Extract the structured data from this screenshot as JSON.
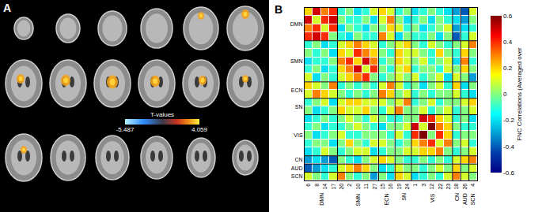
{
  "panel_a": {
    "label": "A",
    "colorbar": {
      "title": "T-values",
      "range": [
        -5.487,
        4.059
      ],
      "ticks": [
        -5.487,
        4.059
      ]
    }
  },
  "chart_data": {
    "type": "heatmap",
    "label": "B",
    "color": "Jet",
    "categories": [
      "6",
      "8",
      "14",
      "17",
      "20",
      "2",
      "10",
      "11",
      "27",
      "15",
      "16",
      "19",
      "24",
      "1",
      "3",
      "12",
      "22",
      "23",
      "18",
      "26",
      "4"
    ],
    "groups": [
      {
        "name": "DMN",
        "size": 4
      },
      {
        "name": "SMN",
        "size": 5
      },
      {
        "name": "ECN",
        "size": 2
      },
      {
        "name": "SN",
        "size": 2
      },
      {
        "name": "VIS",
        "size": 5
      },
      {
        "name": "CN",
        "size": 1
      },
      {
        "name": "AUD",
        "size": 1
      },
      {
        "name": "SCN",
        "size": 1
      }
    ],
    "values": [
      [
        0.2,
        0.5,
        0.3,
        0.4,
        -0.1,
        0.0,
        -0.2,
        -0.1,
        0.1,
        0.2,
        0.1,
        -0.1,
        0.0,
        -0.2,
        -0.1,
        0.0,
        -0.1,
        -0.2,
        -0.3,
        -0.4,
        0.1
      ],
      [
        0.5,
        0.1,
        0.4,
        0.5,
        0.0,
        -0.1,
        -0.1,
        0.0,
        -0.2,
        0.1,
        0.3,
        0.0,
        -0.2,
        -0.1,
        0.0,
        -0.2,
        0.0,
        -0.1,
        -0.2,
        -0.3,
        0.0
      ],
      [
        0.3,
        0.4,
        0.1,
        0.4,
        -0.2,
        0.0,
        -0.1,
        -0.2,
        0.0,
        0.0,
        0.2,
        0.1,
        -0.1,
        0.0,
        -0.2,
        -0.1,
        0.0,
        0.1,
        -0.3,
        -0.2,
        -0.1
      ],
      [
        0.4,
        0.5,
        0.4,
        0.0,
        -0.1,
        -0.2,
        0.0,
        -0.1,
        -0.1,
        0.3,
        0.1,
        -0.2,
        0.0,
        -0.1,
        -0.1,
        0.0,
        -0.2,
        0.0,
        -0.4,
        -0.1,
        0.1
      ],
      [
        -0.1,
        0.0,
        -0.2,
        -0.1,
        0.1,
        0.2,
        0.3,
        0.2,
        0.1,
        -0.1,
        0.0,
        0.1,
        0.2,
        0.0,
        -0.1,
        0.1,
        0.0,
        -0.1,
        0.0,
        0.1,
        0.3
      ],
      [
        0.0,
        -0.1,
        0.0,
        -0.2,
        0.2,
        0.1,
        0.4,
        0.3,
        0.2,
        0.0,
        -0.1,
        0.2,
        0.1,
        0.1,
        0.0,
        -0.1,
        0.2,
        0.0,
        -0.1,
        0.2,
        0.0
      ],
      [
        -0.2,
        -0.1,
        -0.1,
        0.0,
        0.3,
        0.4,
        0.2,
        0.5,
        0.3,
        -0.1,
        0.0,
        0.2,
        0.1,
        0.0,
        0.1,
        -0.1,
        0.0,
        0.1,
        -0.2,
        0.3,
        -0.1
      ],
      [
        -0.1,
        0.0,
        -0.2,
        -0.1,
        0.2,
        0.3,
        0.5,
        0.1,
        0.4,
        0.0,
        -0.1,
        0.1,
        0.2,
        -0.1,
        0.0,
        0.0,
        -0.1,
        0.1,
        0.0,
        0.2,
        0.0
      ],
      [
        0.1,
        -0.2,
        0.0,
        -0.1,
        0.1,
        0.2,
        0.3,
        0.4,
        0.0,
        -0.1,
        0.0,
        0.1,
        0.0,
        0.1,
        -0.1,
        0.0,
        0.1,
        -0.2,
        0.1,
        0.0,
        -0.3
      ],
      [
        0.2,
        0.1,
        0.0,
        0.3,
        -0.1,
        0.0,
        -0.1,
        0.0,
        -0.1,
        0.1,
        0.3,
        0.1,
        -0.1,
        0.0,
        -0.2,
        0.0,
        0.1,
        -0.1,
        0.2,
        -0.2,
        0.0
      ],
      [
        0.1,
        0.3,
        0.2,
        0.1,
        0.0,
        -0.1,
        0.0,
        -0.1,
        0.0,
        0.3,
        0.2,
        0.0,
        0.1,
        -0.1,
        0.0,
        -0.1,
        0.0,
        0.0,
        0.1,
        -0.1,
        -0.2
      ],
      [
        -0.1,
        0.0,
        0.1,
        -0.2,
        0.1,
        0.2,
        0.2,
        0.1,
        0.1,
        0.1,
        0.0,
        0.1,
        0.3,
        -0.1,
        0.0,
        0.1,
        -0.1,
        0.0,
        0.0,
        0.1,
        0.2
      ],
      [
        0.0,
        -0.2,
        -0.1,
        0.0,
        0.2,
        0.1,
        0.1,
        0.2,
        0.0,
        -0.1,
        0.1,
        0.3,
        0.0,
        0.0,
        0.1,
        -0.1,
        0.0,
        0.1,
        -0.1,
        0.0,
        0.1
      ],
      [
        -0.2,
        -0.1,
        0.0,
        -0.1,
        0.0,
        0.1,
        0.0,
        -0.1,
        0.1,
        0.0,
        -0.1,
        -0.1,
        0.0,
        0.0,
        0.5,
        0.4,
        0.2,
        0.1,
        -0.1,
        0.0,
        -0.2
      ],
      [
        -0.1,
        0.0,
        -0.2,
        -0.1,
        -0.1,
        0.0,
        0.1,
        0.0,
        -0.1,
        -0.2,
        0.0,
        0.0,
        0.1,
        0.5,
        0.1,
        0.6,
        0.3,
        0.2,
        0.0,
        -0.1,
        -0.1
      ],
      [
        0.0,
        -0.2,
        -0.1,
        0.0,
        0.1,
        -0.1,
        -0.1,
        0.0,
        0.0,
        0.0,
        -0.1,
        0.1,
        -0.1,
        0.4,
        0.6,
        0.0,
        0.4,
        0.2,
        -0.1,
        0.0,
        0.0
      ],
      [
        -0.1,
        0.0,
        0.0,
        -0.2,
        0.0,
        0.2,
        0.0,
        -0.1,
        0.1,
        0.1,
        0.0,
        -0.1,
        0.0,
        0.2,
        0.3,
        0.4,
        0.1,
        0.3,
        0.0,
        0.1,
        -0.1
      ],
      [
        -0.2,
        -0.1,
        0.1,
        0.0,
        -0.1,
        0.0,
        0.1,
        0.1,
        -0.2,
        -0.1,
        0.0,
        0.0,
        0.1,
        0.1,
        0.2,
        0.2,
        0.3,
        0.0,
        -0.1,
        0.0,
        0.1
      ],
      [
        -0.3,
        -0.2,
        -0.3,
        -0.4,
        0.0,
        -0.1,
        -0.2,
        0.0,
        0.1,
        0.2,
        0.1,
        0.0,
        -0.1,
        -0.1,
        0.0,
        -0.1,
        0.0,
        -0.1,
        0.1,
        0.2,
        0.3
      ],
      [
        -0.4,
        -0.3,
        -0.2,
        -0.1,
        0.1,
        0.2,
        0.3,
        0.2,
        0.0,
        -0.2,
        -0.1,
        0.1,
        0.0,
        0.0,
        -0.1,
        0.0,
        0.1,
        0.0,
        0.2,
        0.0,
        0.1
      ],
      [
        0.1,
        0.0,
        -0.1,
        0.1,
        0.3,
        0.0,
        -0.1,
        0.0,
        -0.3,
        0.0,
        -0.2,
        0.2,
        0.1,
        -0.2,
        -0.1,
        0.0,
        -0.1,
        0.1,
        0.3,
        0.1,
        0.0
      ]
    ],
    "colorbar": {
      "title": "FNC Correlations (Averaged over",
      "range": [
        -0.6,
        0.6
      ],
      "ticks": [
        0.6,
        0.4,
        0.2,
        0,
        -0.2,
        -0.4,
        -0.6
      ]
    }
  }
}
